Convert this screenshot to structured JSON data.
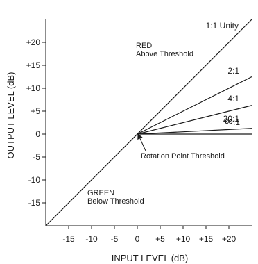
{
  "chart_data": {
    "type": "line",
    "xlabel": "INPUT LEVEL (dB)",
    "ylabel": "OUTPUT LEVEL (dB)",
    "xlim": [
      -20,
      25
    ],
    "ylim": [
      -20,
      25
    ],
    "x_ticks": [
      -15,
      -10,
      -5,
      0,
      5,
      10,
      15,
      20
    ],
    "x_tick_labels": [
      "-15",
      "-10",
      "-5",
      "0",
      "+5",
      "+10",
      "+15",
      "+20"
    ],
    "y_ticks": [
      -15,
      -10,
      -5,
      0,
      5,
      10,
      15,
      20
    ],
    "y_tick_labels": [
      "-15",
      "-10",
      "-5",
      "0",
      "+5",
      "+10",
      "+15",
      "+20"
    ],
    "grid": false,
    "color": "#1a1a1a",
    "series": [
      {
        "name": "1:1 Unity",
        "x": [
          -20,
          25
        ],
        "y": [
          -20,
          25
        ]
      },
      {
        "name": "2:1",
        "x": [
          0,
          25
        ],
        "y": [
          0,
          12.5
        ]
      },
      {
        "name": "4:1",
        "x": [
          0,
          25
        ],
        "y": [
          0,
          6.25
        ]
      },
      {
        "name": "20:1",
        "x": [
          0,
          25
        ],
        "y": [
          0,
          1.25
        ]
      },
      {
        "name": "∞:1",
        "x": [
          0,
          25
        ],
        "y": [
          0,
          0
        ]
      }
    ],
    "annotations": {
      "red": [
        "RED",
        "Above Threshold"
      ],
      "green": [
        "GREEN",
        "Below Threshold"
      ],
      "rotation": "Rotation Point Threshold"
    }
  }
}
